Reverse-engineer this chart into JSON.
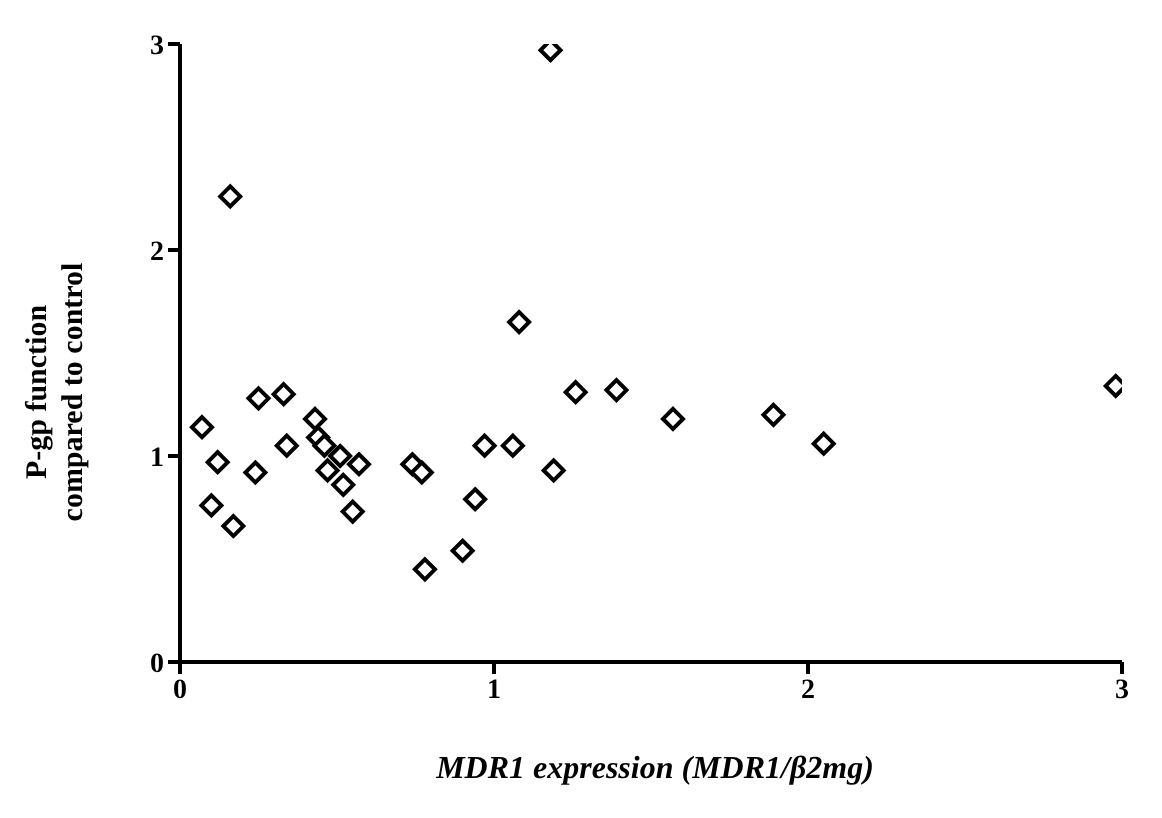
{
  "chart_data": {
    "type": "scatter",
    "xlabel": "MDR1 expression (MDR1/β2mg)",
    "ylabel": "P-gp function\ncompared to control",
    "xlim": [
      0,
      3
    ],
    "xticks": [
      0,
      1,
      2,
      3
    ],
    "ylim": [
      0,
      3
    ],
    "yticks": [
      0,
      1,
      2,
      3
    ],
    "grid": false,
    "legend": false,
    "marker": "diamond",
    "series": [
      {
        "color": "#000000",
        "x": [
          0.07,
          0.12,
          0.1,
          0.17,
          0.16,
          0.24,
          0.25,
          0.33,
          0.34,
          0.43,
          0.44,
          0.46,
          0.47,
          0.51,
          0.52,
          0.57,
          0.55,
          0.74,
          0.77,
          0.78,
          0.9,
          0.94,
          0.97,
          1.06,
          1.08,
          1.18,
          1.19,
          1.26,
          1.39,
          1.57,
          1.89,
          2.05,
          2.98
        ],
        "values": [
          1.14,
          0.97,
          0.76,
          0.66,
          2.26,
          0.92,
          1.28,
          1.3,
          1.05,
          1.18,
          1.09,
          1.05,
          0.93,
          1.0,
          0.86,
          0.96,
          0.73,
          0.96,
          0.92,
          0.45,
          0.54,
          0.79,
          1.05,
          1.05,
          1.65,
          2.97,
          0.93,
          1.31,
          1.32,
          1.18,
          1.2,
          1.06,
          1.34
        ]
      }
    ]
  }
}
